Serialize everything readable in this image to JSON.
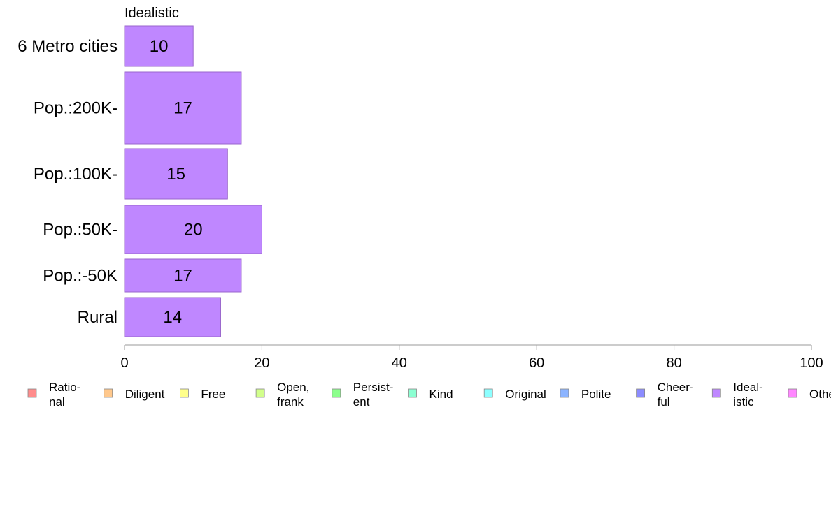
{
  "chart_data": {
    "type": "bar",
    "orientation": "horizontal",
    "title": "Idealistic",
    "categories": [
      "6 Metro cities",
      "Pop.:200K-",
      "Pop.:100K-",
      "Pop.:50K-",
      "Pop.:-50K",
      "Rural"
    ],
    "values": [
      10,
      17,
      15,
      20,
      17,
      14
    ],
    "data_labels": [
      "10",
      "17",
      "15",
      "20",
      "17",
      "14"
    ],
    "bar_color": "#bf87ff",
    "bar_border_color": "#9966cc",
    "xlim": [
      0,
      100
    ],
    "x_ticks": [
      0,
      20,
      40,
      60,
      80,
      100
    ],
    "x_tick_labels": [
      "0",
      "20",
      "40",
      "60",
      "80",
      "100"
    ],
    "grid": false,
    "legend_position": "bottom",
    "legend": [
      {
        "lines": [
          "Ratio-",
          "nal"
        ],
        "color": "#ff8c8c"
      },
      {
        "lines": [
          "Diligent"
        ],
        "color": "#ffc88c"
      },
      {
        "lines": [
          "Free"
        ],
        "color": "#ffff8c"
      },
      {
        "lines": [
          "Open,",
          "frank"
        ],
        "color": "#d2ff8c"
      },
      {
        "lines": [
          "Persist-",
          "ent"
        ],
        "color": "#8cff8c"
      },
      {
        "lines": [
          "Kind"
        ],
        "color": "#8cffd2"
      },
      {
        "lines": [
          "Original"
        ],
        "color": "#8cffff"
      },
      {
        "lines": [
          "Polite"
        ],
        "color": "#8cb4ff"
      },
      {
        "lines": [
          "Cheer-",
          "ful"
        ],
        "color": "#8c8cff"
      },
      {
        "lines": [
          "Ideal-",
          "istic"
        ],
        "color": "#bf87ff"
      },
      {
        "lines": [
          "Other"
        ],
        "color": "#ff87ff"
      }
    ]
  }
}
